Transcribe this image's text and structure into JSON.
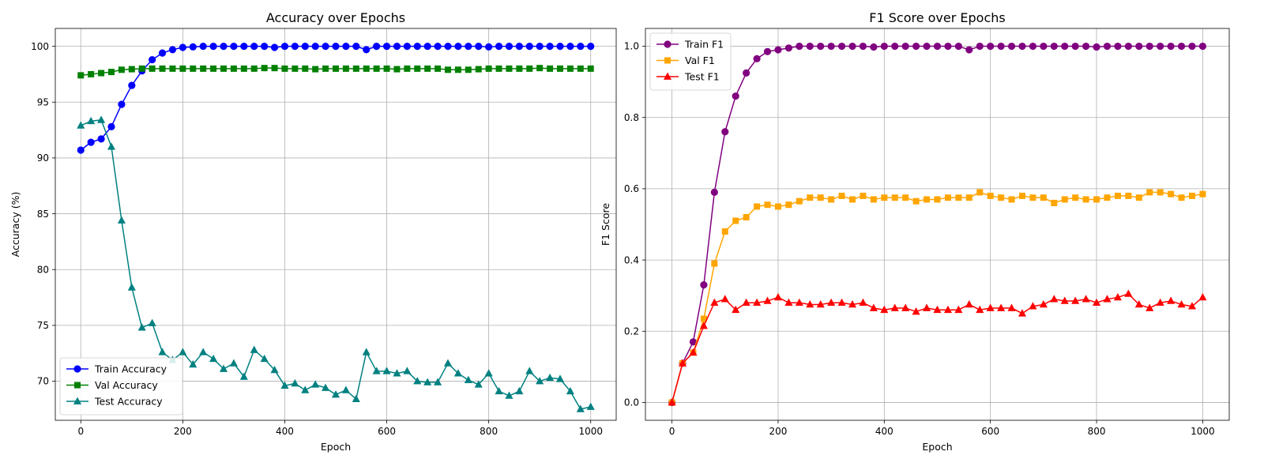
{
  "chart_data": [
    {
      "type": "line",
      "title": "Accuracy over Epochs",
      "xlabel": "Epoch",
      "ylabel": "Accuracy (%)",
      "xlim": [
        -50,
        1050
      ],
      "ylim": [
        66.5,
        101.6
      ],
      "xticks": [
        0,
        200,
        400,
        600,
        800,
        1000
      ],
      "yticks": [
        70,
        75,
        80,
        85,
        90,
        95,
        100
      ],
      "grid": true,
      "legend_position": "bottom-left",
      "x": [
        0,
        20,
        40,
        60,
        80,
        100,
        120,
        140,
        160,
        180,
        200,
        220,
        240,
        260,
        280,
        300,
        320,
        340,
        360,
        380,
        400,
        420,
        440,
        460,
        480,
        500,
        520,
        540,
        560,
        580,
        600,
        620,
        640,
        660,
        680,
        700,
        720,
        740,
        760,
        780,
        800,
        820,
        840,
        860,
        880,
        900,
        920,
        940,
        960,
        980,
        1000
      ],
      "series": [
        {
          "name": "Train Accuracy",
          "color": "#0000ff",
          "marker": "circle",
          "values": [
            90.7,
            91.4,
            91.7,
            92.8,
            94.8,
            96.5,
            97.8,
            98.8,
            99.4,
            99.7,
            99.9,
            99.95,
            100,
            100,
            100,
            100,
            100,
            100,
            100,
            99.9,
            100,
            100,
            100,
            100,
            100,
            100,
            100,
            100,
            99.7,
            100,
            100,
            100,
            100,
            100,
            100,
            100,
            100,
            100,
            100,
            100,
            99.95,
            100,
            100,
            100,
            100,
            100,
            100,
            100,
            100,
            100,
            100
          ]
        },
        {
          "name": "Val Accuracy",
          "color": "#008000",
          "marker": "square",
          "values": [
            97.4,
            97.5,
            97.6,
            97.7,
            97.9,
            97.95,
            98.0,
            98.0,
            98.0,
            98.0,
            98.0,
            98.0,
            98.0,
            98.0,
            98.0,
            98.0,
            98.0,
            98.0,
            98.05,
            98.05,
            98.0,
            98.0,
            98.0,
            97.95,
            98.0,
            98.0,
            98.0,
            98.0,
            98.0,
            98.0,
            98.0,
            97.95,
            98.0,
            98.0,
            98.0,
            98.0,
            97.9,
            97.9,
            97.9,
            97.95,
            98.0,
            98.0,
            98.0,
            98.0,
            98.0,
            98.05,
            98.0,
            98.0,
            98.0,
            98.0,
            98.0
          ]
        },
        {
          "name": "Test Accuracy",
          "color": "#008080",
          "marker": "triangle",
          "values": [
            92.9,
            93.3,
            93.4,
            91.0,
            84.4,
            78.4,
            74.8,
            75.2,
            72.6,
            71.9,
            72.6,
            71.5,
            72.6,
            72.0,
            71.1,
            71.6,
            70.4,
            72.8,
            72.0,
            71.0,
            69.6,
            69.8,
            69.2,
            69.7,
            69.4,
            68.8,
            69.2,
            68.4,
            72.6,
            70.9,
            70.9,
            70.7,
            70.9,
            70.0,
            69.9,
            69.9,
            71.6,
            70.7,
            70.1,
            69.7,
            70.7,
            69.1,
            68.7,
            69.1,
            70.9,
            70.0,
            70.3,
            70.2,
            69.1,
            67.5,
            67.7
          ]
        }
      ]
    },
    {
      "type": "line",
      "title": "F1 Score over Epochs",
      "xlabel": "Epoch",
      "ylabel": "F1 Score",
      "xlim": [
        -50,
        1050
      ],
      "ylim": [
        -0.05,
        1.05
      ],
      "xticks": [
        0,
        200,
        400,
        600,
        800,
        1000
      ],
      "yticks": [
        0.0,
        0.2,
        0.4,
        0.6,
        0.8,
        1.0
      ],
      "ytick_labels": [
        "0.0",
        "0.2",
        "0.4",
        "0.6",
        "0.8",
        "1.0"
      ],
      "grid": true,
      "legend_position": "top-left",
      "x": [
        0,
        20,
        40,
        60,
        80,
        100,
        120,
        140,
        160,
        180,
        200,
        220,
        240,
        260,
        280,
        300,
        320,
        340,
        360,
        380,
        400,
        420,
        440,
        460,
        480,
        500,
        520,
        540,
        560,
        580,
        600,
        620,
        640,
        660,
        680,
        700,
        720,
        740,
        760,
        780,
        800,
        820,
        840,
        860,
        880,
        900,
        920,
        940,
        960,
        980,
        1000
      ],
      "series": [
        {
          "name": "Train F1",
          "color": "#800080",
          "marker": "circle",
          "values": [
            0.0,
            0.11,
            0.17,
            0.33,
            0.59,
            0.76,
            0.86,
            0.925,
            0.965,
            0.985,
            0.99,
            0.995,
            1.0,
            1.0,
            1.0,
            1.0,
            1.0,
            1.0,
            1.0,
            0.998,
            1.0,
            1.0,
            1.0,
            1.0,
            1.0,
            1.0,
            1.0,
            1.0,
            0.99,
            1.0,
            1.0,
            1.0,
            1.0,
            1.0,
            1.0,
            1.0,
            1.0,
            1.0,
            1.0,
            1.0,
            0.998,
            1.0,
            1.0,
            1.0,
            1.0,
            1.0,
            1.0,
            1.0,
            1.0,
            1.0,
            1.0
          ]
        },
        {
          "name": "Val F1",
          "color": "#ffa500",
          "marker": "square",
          "values": [
            0.0,
            0.11,
            0.14,
            0.235,
            0.39,
            0.48,
            0.51,
            0.52,
            0.55,
            0.555,
            0.55,
            0.555,
            0.565,
            0.575,
            0.575,
            0.57,
            0.58,
            0.57,
            0.58,
            0.57,
            0.575,
            0.575,
            0.575,
            0.565,
            0.57,
            0.57,
            0.575,
            0.575,
            0.575,
            0.59,
            0.58,
            0.575,
            0.57,
            0.58,
            0.575,
            0.575,
            0.56,
            0.57,
            0.575,
            0.57,
            0.57,
            0.575,
            0.58,
            0.58,
            0.575,
            0.59,
            0.59,
            0.585,
            0.575,
            0.58,
            0.585
          ]
        },
        {
          "name": "Test F1",
          "color": "#ff0000",
          "marker": "triangle",
          "values": [
            0.0,
            0.11,
            0.14,
            0.215,
            0.28,
            0.29,
            0.26,
            0.28,
            0.28,
            0.285,
            0.295,
            0.28,
            0.28,
            0.275,
            0.275,
            0.28,
            0.28,
            0.275,
            0.28,
            0.265,
            0.26,
            0.265,
            0.265,
            0.255,
            0.265,
            0.26,
            0.26,
            0.26,
            0.275,
            0.26,
            0.265,
            0.265,
            0.265,
            0.25,
            0.27,
            0.275,
            0.29,
            0.285,
            0.285,
            0.29,
            0.28,
            0.29,
            0.295,
            0.305,
            0.275,
            0.265,
            0.28,
            0.285,
            0.275,
            0.27,
            0.295
          ]
        }
      ]
    }
  ]
}
